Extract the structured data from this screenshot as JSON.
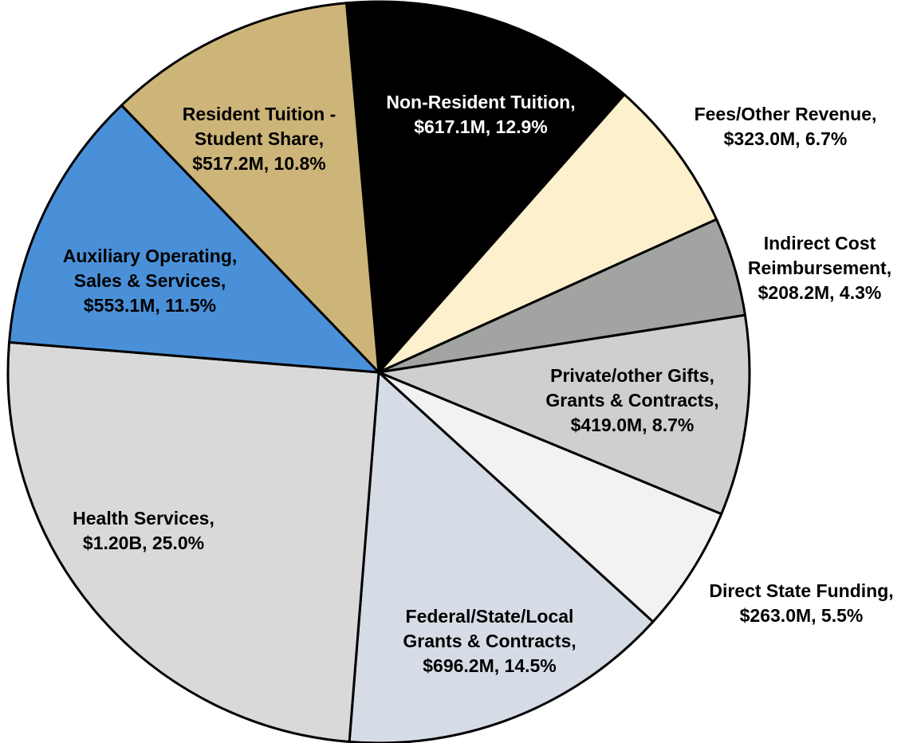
{
  "chart_data": {
    "type": "pie",
    "categories": [
      "Non-Resident Tuition,",
      "Fees/Other Revenue,",
      "Indirect Cost Reimbursement,",
      "Private/other Gifts, Grants & Contracts,",
      "Direct State Funding,",
      "Federal/State/Local Grants & Contracts,",
      "Health Services,",
      "Auxiliary Operating, Sales & Services,",
      "Resident Tuition - Student Share,"
    ],
    "values": [
      12.9,
      6.7,
      4.3,
      8.7,
      5.5,
      14.5,
      25.0,
      11.5,
      10.8
    ],
    "value_labels": [
      "$617.1M, 12.9%",
      "$323.0M, 6.7%",
      "$208.2M, 4.3%",
      "$419.0M, 8.7%",
      "$263.0M, 5.5%",
      "$696.2M, 14.5%",
      "$1.20B, 25.0%",
      "$553.1M, 11.5%",
      "$517.2M, 10.8%"
    ],
    "colors": [
      "#000000",
      "#fdf0cc",
      "#a2a4a2",
      "#d0cece",
      "#f2f2f2",
      "#d6dce5",
      "#d9d9d9",
      "#4a90d9",
      "#cdb57a"
    ]
  }
}
